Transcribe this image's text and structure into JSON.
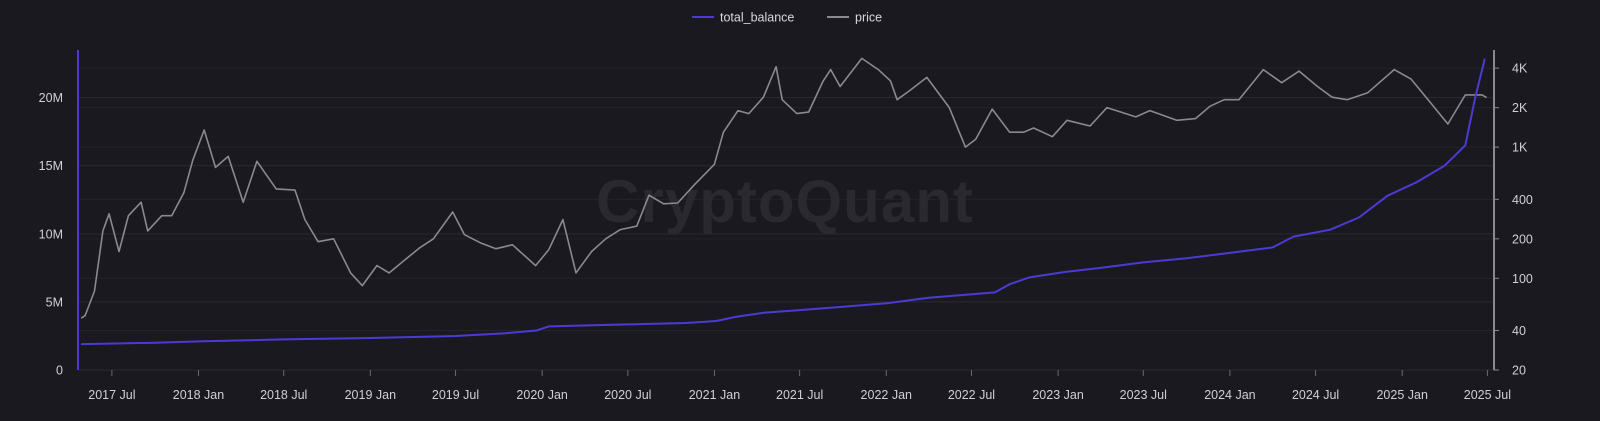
{
  "watermark": "CryptoQuant",
  "colors": {
    "background": "#1a191f",
    "grid": "#2b2a31",
    "total_balance": "#4b3bd6",
    "price": "#8a898f",
    "text": "#d0d0d4"
  },
  "chart_data": {
    "type": "line",
    "title": "",
    "grid": true,
    "legend_position": "top-center",
    "x_ticks": [
      "2017 Jul",
      "2018 Jan",
      "2018 Jul",
      "2019 Jan",
      "2019 Jul",
      "2020 Jan",
      "2020 Jul",
      "2021 Jan",
      "2021 Jul",
      "2022 Jan",
      "2022 Jul",
      "2023 Jan",
      "2023 Jul",
      "2024 Jan",
      "2024 Jul",
      "2025 Jan",
      "2025 Jul"
    ],
    "x_range": [
      "2017-04-20",
      "2025-07-15"
    ],
    "y_left": {
      "ticks": [
        "0",
        "5M",
        "10M",
        "15M",
        "20M"
      ],
      "tick_values": [
        0,
        5000000,
        10000000,
        15000000,
        20000000
      ],
      "range": [
        0,
        23500000
      ]
    },
    "y_right": {
      "scale": "log",
      "ticks": [
        "20",
        "40",
        "100",
        "200",
        "400",
        "1K",
        "2K",
        "4K"
      ],
      "tick_values": [
        20,
        40,
        100,
        200,
        400,
        1000,
        2000,
        4000
      ],
      "range": [
        20,
        5500
      ]
    },
    "series": [
      {
        "name": "total_balance",
        "axis": "left",
        "points": [
          [
            "2017-04-28",
            1900000
          ],
          [
            "2017-10-01",
            2000000
          ],
          [
            "2018-01-01",
            2100000
          ],
          [
            "2018-07-01",
            2250000
          ],
          [
            "2019-01-01",
            2350000
          ],
          [
            "2019-07-01",
            2500000
          ],
          [
            "2019-10-15",
            2700000
          ],
          [
            "2019-12-20",
            2900000
          ],
          [
            "2020-01-15",
            3200000
          ],
          [
            "2020-07-01",
            3350000
          ],
          [
            "2020-11-01",
            3450000
          ],
          [
            "2021-01-05",
            3600000
          ],
          [
            "2021-02-15",
            3900000
          ],
          [
            "2021-04-15",
            4200000
          ],
          [
            "2021-07-01",
            4400000
          ],
          [
            "2021-10-01",
            4650000
          ],
          [
            "2022-01-01",
            4900000
          ],
          [
            "2022-04-01",
            5300000
          ],
          [
            "2022-07-15",
            5600000
          ],
          [
            "2022-08-20",
            5700000
          ],
          [
            "2022-09-20",
            6300000
          ],
          [
            "2022-11-01",
            6800000
          ],
          [
            "2023-01-15",
            7200000
          ],
          [
            "2023-04-01",
            7500000
          ],
          [
            "2023-07-01",
            7900000
          ],
          [
            "2023-10-01",
            8200000
          ],
          [
            "2024-01-01",
            8600000
          ],
          [
            "2024-04-01",
            9000000
          ],
          [
            "2024-05-15",
            9800000
          ],
          [
            "2024-08-01",
            10300000
          ],
          [
            "2024-10-01",
            11200000
          ],
          [
            "2024-12-01",
            12800000
          ],
          [
            "2025-02-01",
            13800000
          ],
          [
            "2025-04-01",
            15000000
          ],
          [
            "2025-05-15",
            16500000
          ],
          [
            "2025-06-05",
            20000000
          ],
          [
            "2025-06-25",
            22800000
          ]
        ]
      },
      {
        "name": "price",
        "axis": "right",
        "points": [
          [
            "2017-04-28",
            50
          ],
          [
            "2017-05-05",
            52
          ],
          [
            "2017-05-25",
            80
          ],
          [
            "2017-06-12",
            230
          ],
          [
            "2017-06-25",
            310
          ],
          [
            "2017-07-16",
            160
          ],
          [
            "2017-08-05",
            300
          ],
          [
            "2017-09-01",
            380
          ],
          [
            "2017-09-15",
            230
          ],
          [
            "2017-10-15",
            300
          ],
          [
            "2017-11-05",
            300
          ],
          [
            "2017-12-01",
            450
          ],
          [
            "2017-12-20",
            800
          ],
          [
            "2018-01-13",
            1350
          ],
          [
            "2018-02-06",
            700
          ],
          [
            "2018-03-05",
            850
          ],
          [
            "2018-04-06",
            380
          ],
          [
            "2018-05-05",
            780
          ],
          [
            "2018-06-15",
            480
          ],
          [
            "2018-07-25",
            470
          ],
          [
            "2018-08-15",
            280
          ],
          [
            "2018-09-12",
            190
          ],
          [
            "2018-10-15",
            200
          ],
          [
            "2018-11-20",
            110
          ],
          [
            "2018-12-15",
            88
          ],
          [
            "2019-01-15",
            125
          ],
          [
            "2019-02-10",
            110
          ],
          [
            "2019-03-15",
            138
          ],
          [
            "2019-04-15",
            170
          ],
          [
            "2019-05-15",
            200
          ],
          [
            "2019-06-25",
            320
          ],
          [
            "2019-07-20",
            215
          ],
          [
            "2019-08-25",
            185
          ],
          [
            "2019-09-25",
            168
          ],
          [
            "2019-10-30",
            180
          ],
          [
            "2019-12-18",
            125
          ],
          [
            "2020-01-15",
            165
          ],
          [
            "2020-02-14",
            280
          ],
          [
            "2020-03-13",
            110
          ],
          [
            "2020-04-15",
            160
          ],
          [
            "2020-05-15",
            200
          ],
          [
            "2020-06-15",
            235
          ],
          [
            "2020-07-20",
            250
          ],
          [
            "2020-08-15",
            430
          ],
          [
            "2020-09-15",
            370
          ],
          [
            "2020-10-15",
            375
          ],
          [
            "2020-11-20",
            520
          ],
          [
            "2021-01-01",
            740
          ],
          [
            "2021-01-20",
            1300
          ],
          [
            "2021-02-20",
            1900
          ],
          [
            "2021-03-15",
            1800
          ],
          [
            "2021-04-15",
            2400
          ],
          [
            "2021-05-12",
            4100
          ],
          [
            "2021-05-25",
            2300
          ],
          [
            "2021-06-25",
            1800
          ],
          [
            "2021-07-20",
            1850
          ],
          [
            "2021-08-20",
            3200
          ],
          [
            "2021-09-05",
            3900
          ],
          [
            "2021-09-25",
            2900
          ],
          [
            "2021-11-10",
            4750
          ],
          [
            "2021-12-15",
            3900
          ],
          [
            "2022-01-10",
            3200
          ],
          [
            "2022-01-24",
            2300
          ],
          [
            "2022-02-20",
            2700
          ],
          [
            "2022-03-28",
            3400
          ],
          [
            "2022-05-15",
            2000
          ],
          [
            "2022-06-18",
            1000
          ],
          [
            "2022-07-10",
            1150
          ],
          [
            "2022-08-14",
            1950
          ],
          [
            "2022-09-20",
            1300
          ],
          [
            "2022-10-20",
            1300
          ],
          [
            "2022-11-10",
            1400
          ],
          [
            "2022-12-20",
            1200
          ],
          [
            "2023-01-20",
            1600
          ],
          [
            "2023-03-10",
            1450
          ],
          [
            "2023-04-15",
            2000
          ],
          [
            "2023-06-15",
            1700
          ],
          [
            "2023-07-15",
            1900
          ],
          [
            "2023-09-10",
            1600
          ],
          [
            "2023-10-20",
            1650
          ],
          [
            "2023-11-20",
            2050
          ],
          [
            "2023-12-20",
            2300
          ],
          [
            "2024-01-20",
            2300
          ],
          [
            "2024-03-12",
            3900
          ],
          [
            "2024-04-20",
            3100
          ],
          [
            "2024-05-27",
            3800
          ],
          [
            "2024-07-05",
            2900
          ],
          [
            "2024-08-05",
            2400
          ],
          [
            "2024-09-06",
            2300
          ],
          [
            "2024-10-20",
            2600
          ],
          [
            "2024-12-15",
            3900
          ],
          [
            "2025-01-20",
            3300
          ],
          [
            "2025-02-25",
            2300
          ],
          [
            "2025-04-08",
            1500
          ],
          [
            "2025-05-15",
            2500
          ],
          [
            "2025-06-20",
            2500
          ],
          [
            "2025-06-28",
            2400
          ]
        ]
      }
    ]
  }
}
